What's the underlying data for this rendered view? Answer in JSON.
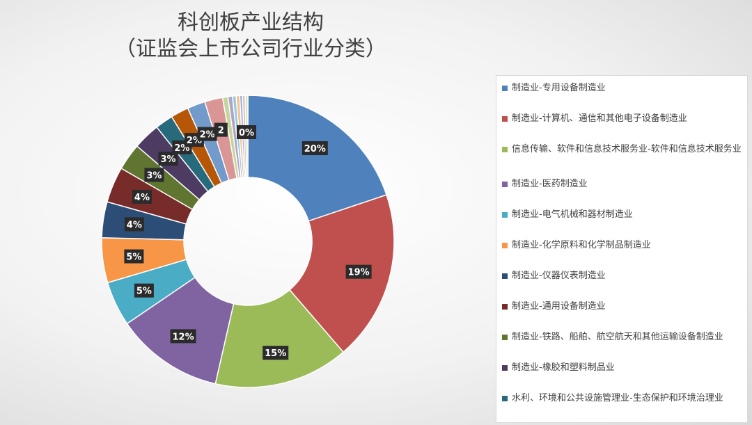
{
  "chart_data": {
    "type": "pie",
    "title": "科创板产业结构",
    "subtitle": "（证监会上市公司行业分类）",
    "slices": [
      {
        "label": "制造业-专用设备制造业",
        "value": 20,
        "display": "20%",
        "color": "#4f81bd"
      },
      {
        "label": "制造业-计算机、通信和其他电子设备制造业",
        "value": 19,
        "display": "19%",
        "color": "#c0504d"
      },
      {
        "label": "信息传输、软件和信息技术服务业-软件和信息技术服务业",
        "value": 15,
        "display": "15%",
        "color": "#9bbb59"
      },
      {
        "label": "制造业-医药制造业",
        "value": 12,
        "display": "12%",
        "color": "#8064a2"
      },
      {
        "label": "制造业-电气机械和器材制造业",
        "value": 5,
        "display": "5%",
        "color": "#4bacc6"
      },
      {
        "label": "制造业-化学原料和化学制品制造业",
        "value": 5,
        "display": "5%",
        "color": "#f79646"
      },
      {
        "label": "制造业-仪器仪表制造业",
        "value": 4,
        "display": "4%",
        "color": "#2c4d75"
      },
      {
        "label": "制造业-通用设备制造业",
        "value": 4,
        "display": "4%",
        "color": "#772c2a"
      },
      {
        "label": "制造业-铁路、船舶、航空航天和其他运输设备制造业",
        "value": 3,
        "display": "3%",
        "color": "#5f7530"
      },
      {
        "label": "制造业-橡胶和塑料制品业",
        "value": 3,
        "display": "3%",
        "color": "#4d3b62"
      },
      {
        "label": "水利、环境和公共设施管理业-生态保护和环境治理业",
        "value": 2,
        "display": "2%",
        "color": "#276a7c"
      },
      {
        "label": "",
        "value": 2,
        "display": "2%",
        "color": "#b65708"
      },
      {
        "label": "",
        "value": 2,
        "display": "2%",
        "color": "#729aca"
      },
      {
        "label": "",
        "value": 2,
        "display": "2",
        "color": "#d99694"
      },
      {
        "label": "",
        "value": 0.6,
        "display": "",
        "color": "#c3d69b"
      },
      {
        "label": "",
        "value": 0.5,
        "display": "",
        "color": "#b3a2c7"
      },
      {
        "label": "",
        "value": 0.4,
        "display": "",
        "color": "#93cddd"
      },
      {
        "label": "",
        "value": 0.4,
        "display": "0%",
        "color": "#fac08f"
      },
      {
        "label": "",
        "value": 0.3,
        "display": "",
        "color": "#8eb4e3"
      },
      {
        "label": "",
        "value": 0.3,
        "display": "",
        "color": "#e6b9b8"
      },
      {
        "label": "",
        "value": 0.3,
        "display": "",
        "color": "#d7e4bc"
      }
    ],
    "legend_position": "right"
  }
}
